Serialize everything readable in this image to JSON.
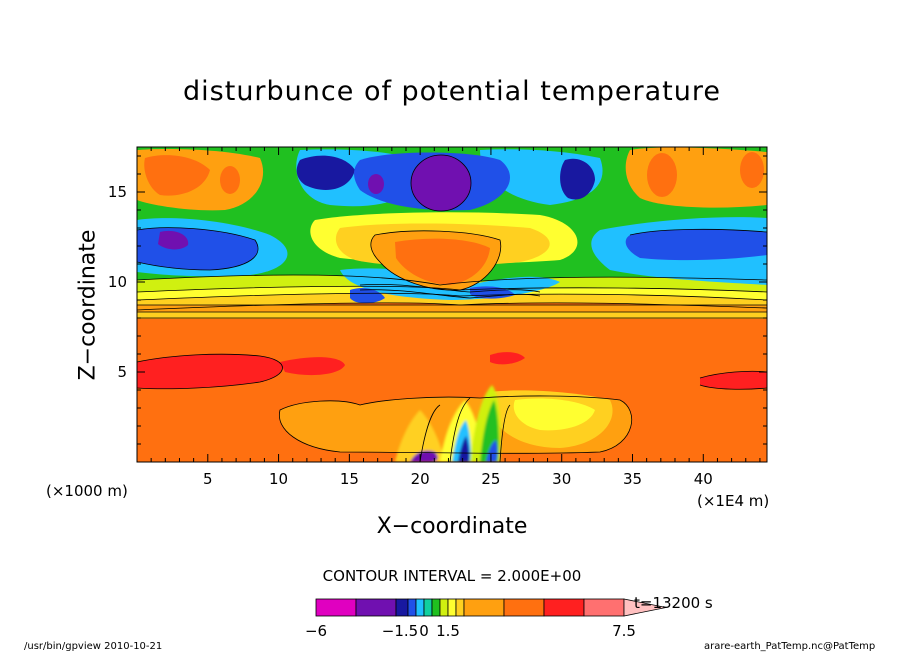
{
  "chart_data": {
    "type": "heatmap",
    "title": "disturbunce of potential temperature",
    "xlabel": "X−coordinate",
    "ylabel": "Z−coordinate",
    "x_unit_note": "(×1000 m)",
    "x_scale_note": "(×1E4 m)",
    "xlim": [
      0,
      44.5
    ],
    "ylim": [
      0,
      17.5
    ],
    "x_ticks": [
      "5",
      "10",
      "15",
      "20",
      "25",
      "30",
      "35",
      "40"
    ],
    "y_ticks": [
      "5",
      "10",
      "15"
    ],
    "contour_interval": "CONTOUR INTERVAL = 2.000E+00",
    "time_label": "t=13200 s",
    "colorbar": {
      "labels": [
        "−6",
        "−1.5",
        "0",
        "1.5",
        "7.5"
      ],
      "colors": [
        "#e000c0",
        "#7010b0",
        "#1818a0",
        "#2050e8",
        "#20c0ff",
        "#10d0a0",
        "#20c020",
        "#d0f010",
        "#ffff30",
        "#ffd020",
        "#ffa010",
        "#ff7010",
        "#ff2020",
        "#ff7070",
        "#ffc0c0"
      ]
    },
    "field_features": [
      {
        "region": "surface to 8",
        "value": "positive, ~2-4"
      },
      {
        "region": "x 0-12 and 28-44, z ~5",
        "value": "~4-6"
      },
      {
        "region": "x 19-24, z 14-17",
        "value": "minimum, about −6"
      },
      {
        "region": "x 15-32, z 9-14",
        "value": "~2-4"
      },
      {
        "region": "x 0-8 and 36-44, z 11-14",
        "value": "−2 to −4"
      },
      {
        "region": "x 20-26, z 0-5",
        "value": "convective cells, oscillating"
      }
    ]
  },
  "footer": {
    "left": "/usr/bin/gpview   2010-10-21",
    "right": "arare-earth_PatTemp.nc@PatTemp"
  }
}
